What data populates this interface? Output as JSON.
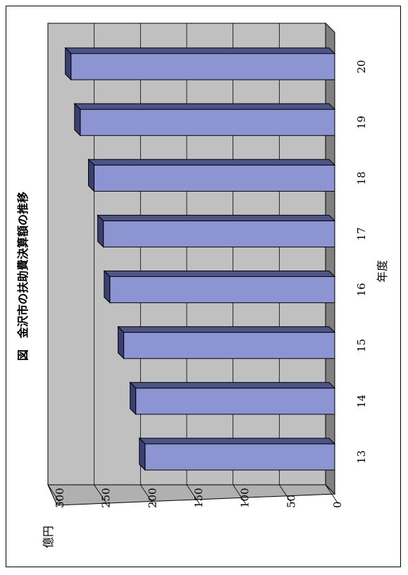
{
  "chart_data": {
    "type": "bar",
    "orientation": "horizontal-3d",
    "title": "図　金沢市の扶助費決算額の推移",
    "categories": [
      "13",
      "14",
      "15",
      "16",
      "17",
      "18",
      "19",
      "20"
    ],
    "values": [
      205,
      215,
      228,
      243,
      250,
      260,
      275,
      285
    ],
    "xlabel": "年度",
    "ylabel": "億円",
    "ylim": [
      0,
      300
    ],
    "yticks": [
      "0",
      "50",
      "100",
      "150",
      "200",
      "250",
      "300"
    ],
    "grid": true,
    "colors": {
      "bar_front": "#8c95d2",
      "bar_top": "#4d5587",
      "bar_side": "#3a4070",
      "wall": "#c0c0c0",
      "floor": "#808080"
    }
  }
}
